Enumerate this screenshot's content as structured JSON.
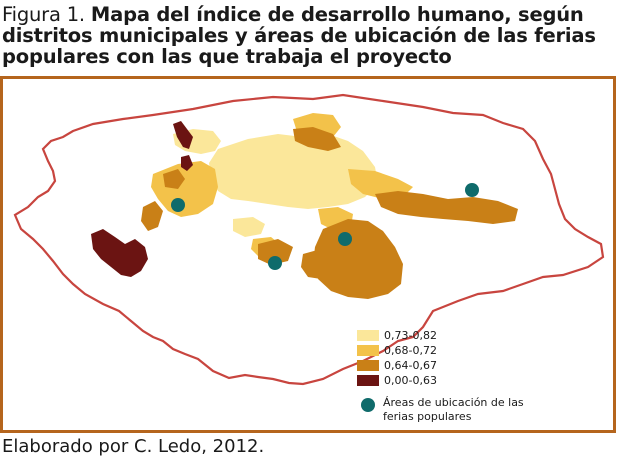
{
  "title": {
    "prefix": "Figura 1. ",
    "text": "Mapa del índice de desarrollo humano, según distritos municipales y áreas de ubicación de las ferias populares con las que trabaja el proyecto"
  },
  "legend": {
    "classes": [
      {
        "label": "0,73-0,82",
        "color": "#fbe79a"
      },
      {
        "label": "0,68-0,72",
        "color": "#f3c24a"
      },
      {
        "label": "0,64-0,67",
        "color": "#c98017"
      },
      {
        "label": "0,00-0,63",
        "color": "#6b1412"
      }
    ],
    "point_label": "Áreas de ubicación de las ferias populares",
    "point_color": "#0f6b6b",
    "boundary_color": "#c8453f"
  },
  "caption": "Elaborado por C. Ledo, 2012."
}
